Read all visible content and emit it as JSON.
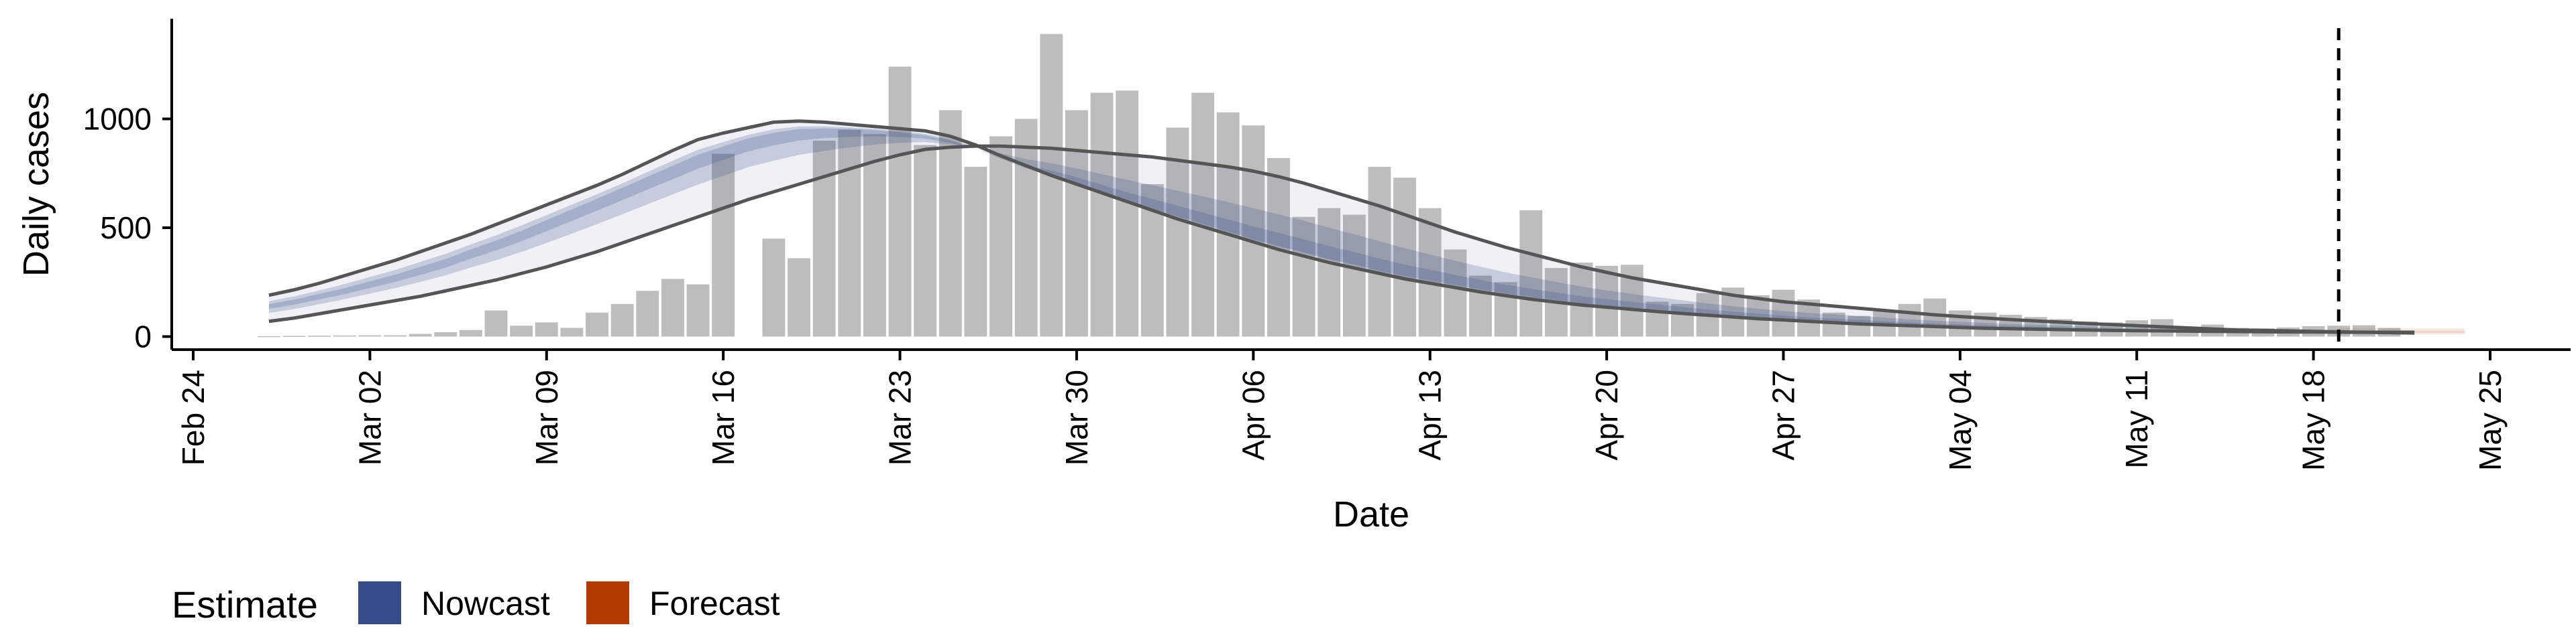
{
  "chart_data": {
    "type": "bar",
    "title": "",
    "xlabel": "Date",
    "ylabel": "Daily cases",
    "x_ticks": [
      "Feb 24",
      "Mar 02",
      "Mar 09",
      "Mar 16",
      "Mar 23",
      "Mar 30",
      "Apr 06",
      "Apr 13",
      "Apr 20",
      "Apr 27",
      "May 04",
      "May 11",
      "May 18",
      "May 25"
    ],
    "y_ticks": [
      0,
      500,
      1000
    ],
    "ylim": [
      -60,
      1460
    ],
    "xlim": [
      "2020-02-24",
      "2020-05-25"
    ],
    "grid": false,
    "vline_date": "2020-05-19",
    "cases_start_date": "2020-02-27",
    "daily_cases": [
      2,
      3,
      4,
      5,
      6,
      6,
      12,
      20,
      30,
      120,
      50,
      65,
      40,
      110,
      150,
      210,
      265,
      240,
      840,
      0,
      450,
      360,
      900,
      950,
      930,
      1240,
      880,
      1040,
      780,
      920,
      1000,
      1390,
      1040,
      1120,
      1130,
      700,
      960,
      1120,
      1030,
      970,
      820,
      550,
      590,
      560,
      780,
      730,
      590,
      400,
      280,
      250,
      580,
      315,
      340,
      325,
      330,
      160,
      150,
      200,
      225,
      190,
      215,
      170,
      110,
      95,
      120,
      150,
      175,
      120,
      110,
      100,
      90,
      80,
      70,
      65,
      75,
      80,
      40,
      55,
      40,
      38,
      42,
      48,
      50,
      52,
      40,
      0
    ],
    "estimate_start_date": "2020-02-27",
    "forecast_start_date": "2020-05-19",
    "nowcast": {
      "median": [
        140,
        160,
        185,
        210,
        240,
        270,
        305,
        340,
        385,
        425,
        470,
        520,
        570,
        620,
        670,
        720,
        770,
        820,
        860,
        900,
        925,
        945,
        950,
        950,
        945,
        935,
        920,
        895,
        860,
        815,
        770,
        740,
        705,
        665,
        625,
        590,
        555,
        520,
        485,
        450,
        420,
        390,
        360,
        335,
        305,
        280,
        260,
        240,
        220,
        200,
        185,
        170,
        155,
        145,
        135,
        125,
        115,
        105,
        98,
        90,
        82,
        75,
        70,
        65,
        60,
        55,
        51,
        48,
        45,
        42,
        40,
        38,
        36,
        34,
        32,
        31,
        30,
        28,
        27,
        26,
        25,
        24,
        23,
        22,
        22,
        21
      ],
      "lower90": [
        70,
        85,
        105,
        125,
        145,
        165,
        185,
        210,
        235,
        260,
        290,
        320,
        355,
        390,
        430,
        470,
        510,
        550,
        590,
        630,
        665,
        700,
        735,
        770,
        805,
        835,
        860,
        870,
        875,
        875,
        870,
        865,
        855,
        845,
        835,
        825,
        810,
        795,
        780,
        760,
        735,
        705,
        670,
        635,
        600,
        560,
        520,
        480,
        445,
        410,
        380,
        350,
        320,
        295,
        270,
        250,
        230,
        210,
        190,
        175,
        160,
        150,
        140,
        130,
        120,
        110,
        100,
        92,
        85,
        78,
        72,
        66,
        60,
        55,
        50,
        45,
        40,
        35,
        30,
        28,
        26,
        24,
        22,
        20,
        18,
        16
      ],
      "upper90": [
        190,
        215,
        245,
        280,
        315,
        350,
        390,
        430,
        470,
        515,
        560,
        605,
        650,
        695,
        745,
        800,
        855,
        905,
        935,
        960,
        985,
        990,
        985,
        975,
        965,
        955,
        945,
        920,
        880,
        830,
        785,
        740,
        700,
        660,
        620,
        580,
        540,
        505,
        470,
        435,
        400,
        370,
        340,
        315,
        290,
        265,
        245,
        225,
        205,
        188,
        172,
        158,
        145,
        135,
        125,
        115,
        106,
        98,
        90,
        82,
        76,
        70,
        64,
        58,
        54,
        50,
        46,
        42,
        38,
        36,
        34,
        32,
        30,
        28,
        27,
        26,
        25,
        24,
        23,
        22,
        21,
        21,
        20,
        20,
        20,
        20
      ]
    },
    "forecast": {
      "median": [
        20,
        20,
        20,
        20,
        20,
        20
      ],
      "lower90": [
        10,
        10,
        10,
        10,
        10,
        10
      ],
      "upper90": [
        38,
        38,
        38,
        38,
        38,
        38
      ]
    },
    "legend": {
      "title": "Estimate",
      "placement": "bottom-left",
      "items": [
        {
          "label": "Nowcast",
          "color": "#354a86"
        },
        {
          "label": "Forecast",
          "color": "#b33a00"
        }
      ]
    },
    "colors": {
      "bars": "#bdbdbd",
      "nowcast_band": "#354a86",
      "forecast_band": "#b33a00",
      "outline": "#555555"
    }
  }
}
